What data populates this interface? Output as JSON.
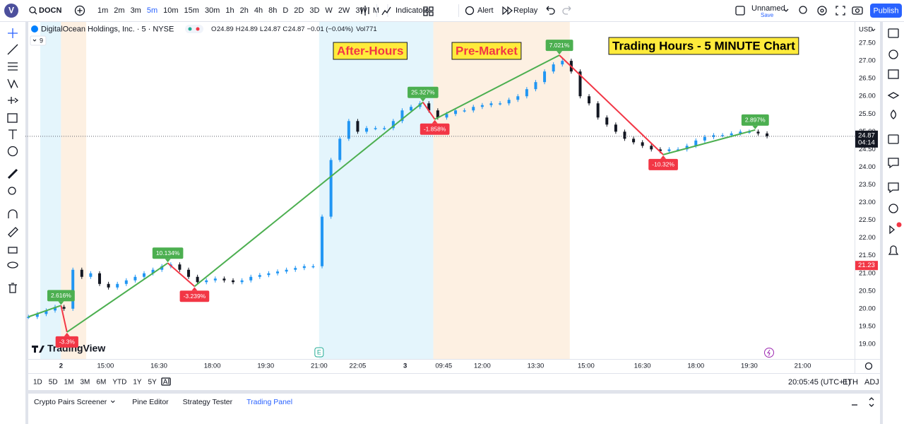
{
  "header": {
    "avatar": "V",
    "symbol": "DOCN",
    "intervals": [
      "1m",
      "2m",
      "3m",
      "5m",
      "10m",
      "15m",
      "30m",
      "1h",
      "2h",
      "4h",
      "8h",
      "D",
      "2D",
      "3D",
      "W",
      "2W",
      "3W",
      "M"
    ],
    "active_interval": 3,
    "indicators": "Indicators",
    "alert": "Alert",
    "replay": "Replay",
    "layout_name": "Unnamed",
    "save": "Save",
    "publish": "Publish"
  },
  "legend": {
    "title": "DigitalOcean Holdings, Inc. · 5 · NYSE",
    "ohlc": [
      {
        "label": "O",
        "value": "24.89"
      },
      {
        "label": "H",
        "value": "24.89"
      },
      {
        "label": "L",
        "value": "24.87"
      },
      {
        "label": "C",
        "value": "24.87"
      }
    ],
    "change": "−0.01 (−0.04%)",
    "volume_label": "Vol",
    "volume": "771",
    "indicator_count": "9"
  },
  "chart_data": {
    "type": "candlestick",
    "x": [
      1,
      4,
      7,
      10,
      13,
      16,
      19,
      22,
      25,
      28,
      31,
      34,
      37,
      40,
      43,
      46,
      49,
      52,
      55,
      58,
      61,
      64,
      67,
      70,
      73,
      76,
      79,
      82,
      85,
      88,
      91,
      94,
      97,
      100,
      103,
      106,
      109,
      112,
      115,
      118,
      121,
      124,
      127,
      130,
      133,
      136,
      139,
      142,
      145,
      148,
      151,
      154,
      157,
      160,
      163,
      166,
      169,
      172,
      175,
      178,
      181,
      184,
      187,
      190,
      193,
      196,
      199,
      202,
      205,
      208,
      211,
      214,
      217,
      220,
      223,
      226,
      229,
      232,
      235,
      238,
      241,
      244,
      247,
      250
    ],
    "values": [
      19.77,
      19.85,
      19.95,
      20.05,
      20.0,
      21.1,
      20.9,
      21.0,
      20.7,
      20.6,
      20.7,
      20.8,
      20.9,
      21.0,
      21.1,
      21.2,
      21.25,
      21.1,
      20.9,
      20.75,
      20.8,
      20.85,
      20.8,
      20.75,
      20.8,
      20.9,
      20.95,
      21.0,
      21.05,
      21.1,
      21.15,
      21.2,
      21.2,
      22.6,
      24.2,
      24.8,
      25.3,
      25.0,
      25.1,
      25.1,
      25.1,
      25.3,
      25.6,
      25.7,
      25.8,
      25.6,
      25.4,
      25.5,
      25.6,
      25.6,
      25.7,
      25.75,
      25.8,
      25.8,
      25.9,
      26.0,
      26.2,
      26.4,
      26.7,
      26.9,
      27.0,
      26.7,
      26.0,
      25.8,
      25.4,
      25.2,
      25.0,
      24.8,
      24.7,
      24.6,
      24.5,
      24.45,
      24.5,
      24.5,
      24.6,
      24.75,
      24.85,
      24.9,
      24.9,
      24.95,
      25.0,
      25.0,
      24.95,
      24.87
    ],
    "up_color": "#2196f3",
    "down_color": "#131722",
    "xlim": [
      0,
      279.5
    ],
    "xticks": [
      {
        "value": 12,
        "label": "2"
      },
      {
        "value": 27,
        "label": "15:00"
      },
      {
        "value": 45,
        "label": "16:30"
      },
      {
        "value": 63,
        "label": "18:00"
      },
      {
        "value": 81,
        "label": "19:30"
      },
      {
        "value": 99,
        "label": "21:00"
      },
      {
        "value": 112,
        "label": "22:05"
      },
      {
        "value": 128,
        "label": "3"
      },
      {
        "value": 141,
        "label": "09:45"
      },
      {
        "value": 154,
        "label": "12:00"
      },
      {
        "value": 172,
        "label": "13:30"
      },
      {
        "value": 189,
        "label": "15:00"
      },
      {
        "value": 208,
        "label": "16:30"
      },
      {
        "value": 226,
        "label": "18:00"
      },
      {
        "value": 244,
        "label": "19:30"
      },
      {
        "value": 262,
        "label": "21:00"
      }
    ],
    "ylim": [
      18.58,
      28.1
    ],
    "yticks": [
      {
        "value": 27.5,
        "label": "27.50"
      },
      {
        "value": 27,
        "label": "27.00"
      },
      {
        "value": 26.5,
        "label": "26.50"
      },
      {
        "value": 26,
        "label": "26.00"
      },
      {
        "value": 25.5,
        "label": "25.50"
      },
      {
        "value": 25,
        "label": "25.00"
      },
      {
        "value": 24.5,
        "label": "24.50"
      },
      {
        "value": 24,
        "label": "24.00"
      },
      {
        "value": 23.5,
        "label": "23.50"
      },
      {
        "value": 23,
        "label": "23.00"
      },
      {
        "value": 22.5,
        "label": "22.50"
      },
      {
        "value": 22,
        "label": "22.00"
      },
      {
        "value": 21.5,
        "label": "21.50"
      },
      {
        "value": 21,
        "label": "21.00"
      },
      {
        "value": 20.5,
        "label": "20.50"
      },
      {
        "value": 20,
        "label": "20.00"
      },
      {
        "value": 19.5,
        "label": "19.50"
      },
      {
        "value": 19,
        "label": "19.00"
      }
    ],
    "grid": false,
    "currency": "USD",
    "sessions": [
      {
        "range": [
          5,
          12
        ],
        "color": "#e4f5fc"
      },
      {
        "range": [
          12,
          20.5
        ],
        "color": "#fdf0e2"
      },
      {
        "range": [
          99,
          137.5
        ],
        "color": "#e4f5fc"
      },
      {
        "range": [
          137.5,
          183.5
        ],
        "color": "#fdf0e2"
      }
    ],
    "zigzag": {
      "x": [
        1,
        12,
        14,
        48,
        57,
        134,
        138,
        180,
        215,
        246
      ],
      "values": [
        19.77,
        20.09,
        19.34,
        21.29,
        20.63,
        25.83,
        25.35,
        27.16,
        24.35,
        25.05
      ],
      "labels": [
        null,
        "2.616%",
        "-3.3%",
        "10.134%",
        "-3.239%",
        "25.327%",
        "-1.858%",
        "7.021%",
        "-10.32%",
        "2.897%"
      ],
      "up_color": "#4caf50",
      "down_color": "#f23645"
    },
    "annotations": [
      {
        "text": "After-Hours",
        "color": "#f23645"
      },
      {
        "text": "Pre-Market",
        "color": "#f23645"
      },
      {
        "text": "Trading Hours - 5 MINUTE Chart",
        "color": "#000000"
      }
    ],
    "last_price": {
      "value": 24.87,
      "label": "24.87",
      "countdown": "04:14"
    },
    "marker_price": {
      "value": 21.23,
      "label": "21.23"
    },
    "events": [
      {
        "x": 99,
        "label": "E"
      }
    ],
    "watermark": "TradingView"
  },
  "footer": {
    "ranges": [
      "1D",
      "5D",
      "1M",
      "3M",
      "6M",
      "YTD",
      "1Y",
      "5Y",
      "All"
    ],
    "clock": "20:05:45 (UTC+1)",
    "session": "ETH",
    "adjust": "ADJ",
    "tabs": [
      "Crypto Pairs Screener",
      "Pine Editor",
      "Strategy Tester",
      "Trading Panel"
    ],
    "active_tab": 3
  }
}
